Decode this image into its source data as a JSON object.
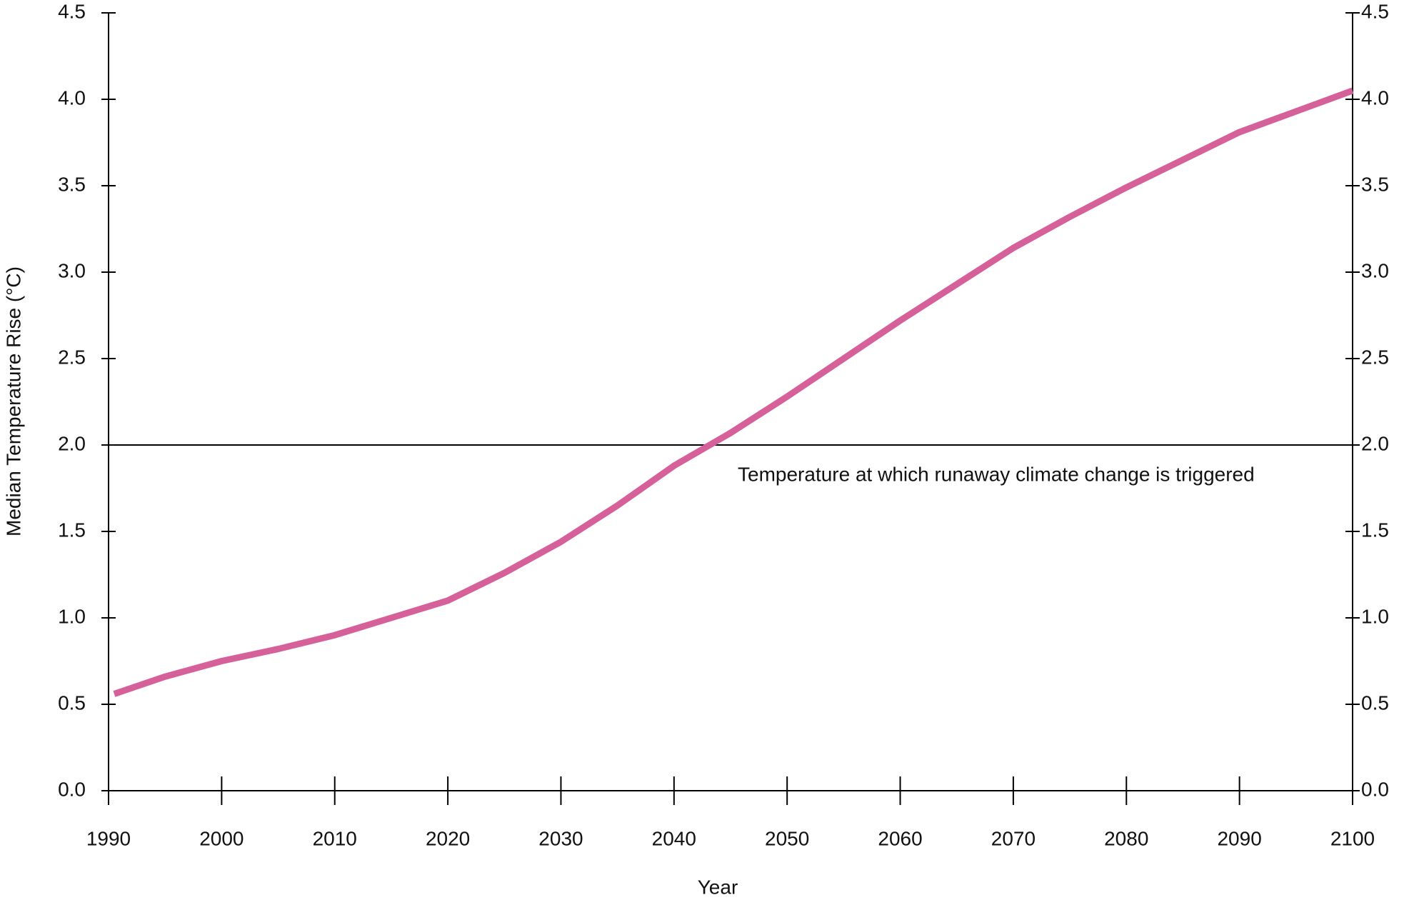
{
  "chart_data": {
    "type": "line",
    "x_label": "Year",
    "y_label": "Median Temperature Rise (°C)",
    "x": [
      1990.5,
      1995,
      2000,
      2005,
      2010,
      2015,
      2020,
      2025,
      2030,
      2035,
      2040,
      2045,
      2050,
      2055,
      2060,
      2065,
      2070,
      2075,
      2080,
      2085,
      2090,
      2095,
      2100
    ],
    "series": [
      {
        "color": "#d6609a",
        "values": [
          0.56,
          0.66,
          0.75,
          0.82,
          0.9,
          1.0,
          1.1,
          1.26,
          1.44,
          1.65,
          1.88,
          2.07,
          2.28,
          2.5,
          2.72,
          2.93,
          3.14,
          3.32,
          3.49,
          3.65,
          3.81,
          3.93,
          4.05
        ]
      }
    ],
    "xlim": [
      1990,
      2100
    ],
    "xticks": [
      1990,
      2000,
      2010,
      2020,
      2030,
      2040,
      2050,
      2060,
      2070,
      2080,
      2090,
      2100
    ],
    "ylim": [
      0,
      4.5
    ],
    "yticks": [
      {
        "value": 0,
        "label": "0.0"
      },
      0.5,
      {
        "value": 1,
        "label": "1.0"
      },
      1.5,
      {
        "value": 2,
        "label": "2.0"
      },
      2.5,
      {
        "value": 3,
        "label": "3.0"
      },
      3.5,
      {
        "value": 4,
        "label": "4.0"
      },
      4.5
    ],
    "y2lim": [
      0,
      4.5
    ],
    "y2ticks": [
      {
        "value": 0,
        "label": "0.0"
      },
      0.5,
      {
        "value": 1,
        "label": "1.0"
      },
      1.5,
      {
        "value": 2,
        "label": "2.0"
      },
      2.5,
      {
        "value": 3,
        "label": "3.0"
      },
      3.5,
      {
        "value": 4,
        "label": "4.0"
      },
      4.5
    ],
    "reference_line": {
      "value": 2,
      "label": "Temperature at which runaway climate change is triggered"
    }
  }
}
